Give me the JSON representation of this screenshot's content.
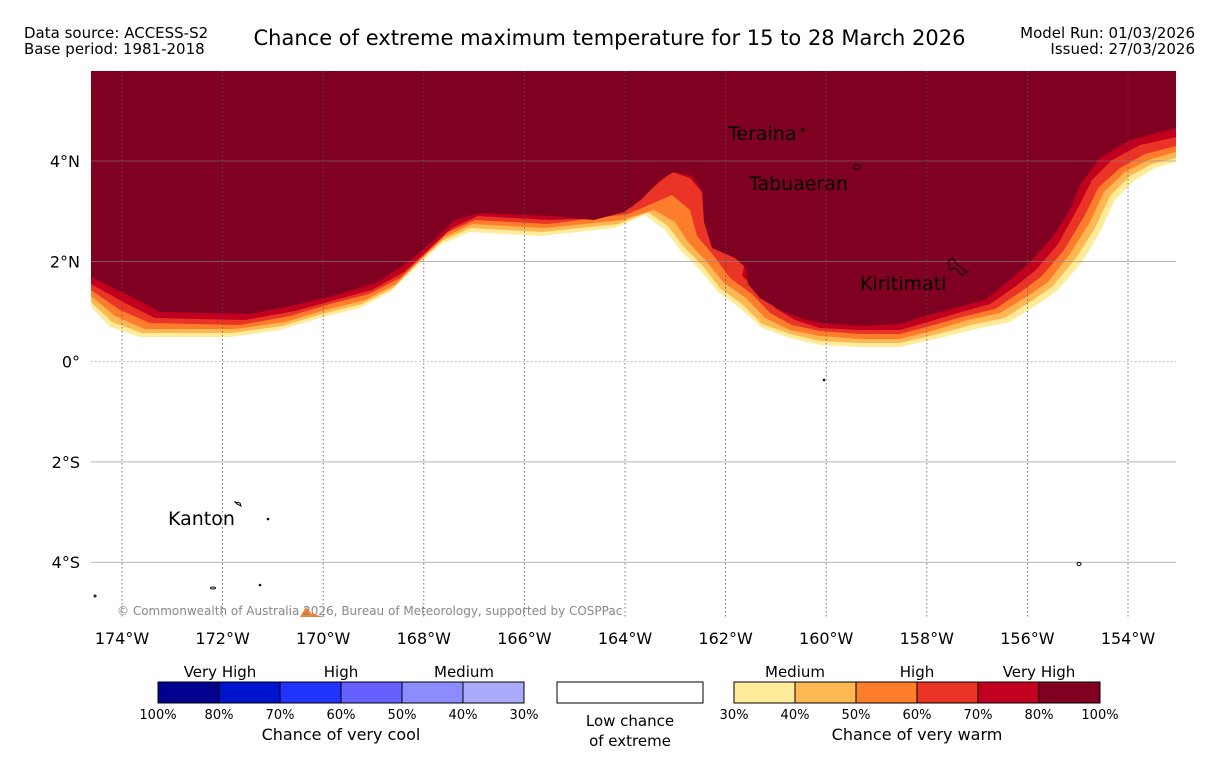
{
  "header": {
    "data_source": "Data source: ACCESS-S2",
    "base_period": "Base period: 1981-2018",
    "title": "Chance of extreme maximum temperature for 15 to 28 March 2026",
    "model_run": "Model Run: 01/03/2026",
    "issued": "Issued: 27/03/2026"
  },
  "map": {
    "lon_labels": [
      "174°W",
      "172°W",
      "170°W",
      "168°W",
      "166°W",
      "164°W",
      "162°W",
      "160°W",
      "158°W",
      "156°W",
      "154°W"
    ],
    "lat_labels": [
      "4°N",
      "2°N",
      "0°",
      "2°S",
      "4°S"
    ],
    "places": {
      "teraina": "Teraina",
      "tabuaeran": "Tabuaeran",
      "kiritimati": "Kiritimati",
      "kanton": "Kanton"
    },
    "copyright": "© Commonwealth of Australia 2026, Bureau of Meteorology, supported by COSPPac",
    "colors": {
      "very_high_80_100": "#7f0020",
      "very_high_70_80": "#c0001e",
      "high_60_70": "#ea3426",
      "high_50_60": "#fd7d2d",
      "medium_40_50": "#fdb753",
      "medium_30_40": "#feec9b"
    }
  },
  "legend": {
    "cool": {
      "categories": [
        "Very High",
        "High",
        "Medium"
      ],
      "ticks": [
        "100%",
        "80%",
        "70%",
        "60%",
        "50%",
        "40%",
        "30%"
      ],
      "colors": [
        "#00008e",
        "#0014ce",
        "#2134fe",
        "#6461fe",
        "#8d8cfe",
        "#ababfe"
      ],
      "title": "Chance of very cool"
    },
    "neutral": {
      "line1": "Low chance",
      "line2": "of extreme"
    },
    "warm": {
      "categories": [
        "Medium",
        "High",
        "Very High"
      ],
      "ticks": [
        "30%",
        "40%",
        "50%",
        "60%",
        "70%",
        "80%",
        "100%"
      ],
      "colors": [
        "#feec9b",
        "#fdb753",
        "#fd7d2d",
        "#ea3426",
        "#c0001e",
        "#7f0020"
      ],
      "title": "Chance of very warm"
    }
  }
}
